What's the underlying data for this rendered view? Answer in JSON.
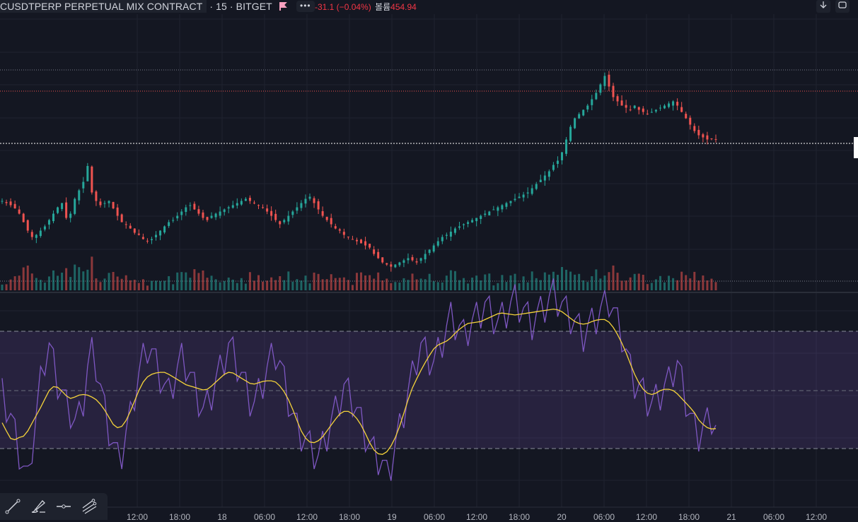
{
  "header": {
    "symbol": "CUSDTPERP PERPETUAL MIX CONTRACT",
    "interval": "15",
    "exchange": "BITGET",
    "change": "-31.1 (−0.04%)",
    "volume_label": "볼륨",
    "volume_value": "454.94",
    "more_label": "•••"
  },
  "toolbar_icons": [
    "trend-line-icon",
    "brush-icon",
    "horizontal-ray-icon",
    "pitchfork-icon"
  ],
  "colors": {
    "background": "#141722",
    "up": "#26a69a",
    "down": "#ef5350",
    "rsi_line": "#7e57c2",
    "rsi_ma": "#f5d33a",
    "rsi_band": "#7e57c2"
  },
  "chart_data": [
    {
      "type": "candlestick",
      "title": "",
      "x_tick_labels": [
        "12:00",
        "18:00",
        "18",
        "06:00",
        "12:00",
        "18:00",
        "19",
        "06:00",
        "12:00",
        "18:00",
        "20",
        "06:00",
        "12:00",
        "18:00",
        "21",
        "06:00",
        "12:00"
      ],
      "candle_count": 168,
      "close_series": [
        0.62,
        0.6,
        0.58,
        0.55,
        0.5,
        0.42,
        0.34,
        0.28,
        0.3,
        0.34,
        0.38,
        0.44,
        0.5,
        0.56,
        0.6,
        0.46,
        0.5,
        0.64,
        0.72,
        0.8,
        0.95,
        0.7,
        0.62,
        0.58,
        0.6,
        0.62,
        0.55,
        0.48,
        0.42,
        0.4,
        0.36,
        0.32,
        0.3,
        0.26,
        0.24,
        0.26,
        0.3,
        0.34,
        0.38,
        0.42,
        0.44,
        0.48,
        0.52,
        0.56,
        0.58,
        0.54,
        0.5,
        0.46,
        0.44,
        0.48,
        0.5,
        0.52,
        0.54,
        0.56,
        0.58,
        0.6,
        0.62,
        0.64,
        0.62,
        0.6,
        0.58,
        0.56,
        0.52,
        0.48,
        0.44,
        0.4,
        0.44,
        0.48,
        0.52,
        0.56,
        0.6,
        0.64,
        0.66,
        0.6,
        0.54,
        0.48,
        0.44,
        0.4,
        0.36,
        0.34,
        0.3,
        0.28,
        0.26,
        0.24,
        0.22,
        0.2,
        0.18,
        0.12,
        0.08,
        0.04,
        0.02,
        0.0,
        0.02,
        0.04,
        0.06,
        0.08,
        0.06,
        0.04,
        0.08,
        0.12,
        0.16,
        0.2,
        0.24,
        0.28,
        0.3,
        0.33,
        0.36,
        0.38,
        0.4,
        0.42,
        0.44,
        0.46,
        0.48,
        0.5,
        0.52,
        0.54,
        0.56,
        0.58,
        0.6,
        0.62,
        0.64,
        0.66,
        0.68,
        0.7,
        0.74,
        0.78,
        0.82,
        0.86,
        0.9,
        0.96,
        1.0,
        1.08,
        1.2,
        1.32,
        1.4,
        1.44,
        1.48,
        1.52,
        1.58,
        1.64,
        1.72,
        1.8,
        1.7,
        1.6,
        1.56,
        1.52,
        1.5,
        1.48,
        1.52,
        1.48,
        1.46,
        1.44,
        1.46,
        1.48,
        1.5,
        1.52,
        1.54,
        1.56,
        1.52,
        1.46,
        1.4,
        1.34,
        1.28,
        1.24,
        1.22,
        1.2,
        1.21,
        1.2
      ],
      "rsi_series": [
        48,
        44,
        40,
        34,
        28,
        22,
        18,
        30,
        40,
        52,
        60,
        64,
        58,
        52,
        48,
        44,
        42,
        38,
        40,
        46,
        56,
        62,
        58,
        50,
        42,
        36,
        30,
        26,
        28,
        34,
        40,
        48,
        54,
        60,
        64,
        62,
        58,
        54,
        50,
        48,
        52,
        56,
        60,
        58,
        54,
        50,
        46,
        42,
        44,
        48,
        52,
        56,
        60,
        64,
        62,
        58,
        54,
        50,
        46,
        44,
        48,
        52,
        56,
        60,
        62,
        58,
        52,
        46,
        40,
        36,
        34,
        32,
        30,
        28,
        26,
        30,
        34,
        38,
        42,
        46,
        50,
        48,
        46,
        42,
        38,
        34,
        30,
        28,
        26,
        24,
        20,
        24,
        30,
        36,
        42,
        48,
        54,
        60,
        64,
        62,
        60,
        58,
        62,
        66,
        70,
        74,
        72,
        70,
        68,
        70,
        72,
        74,
        76,
        78,
        76,
        74,
        72,
        74,
        76,
        78,
        80,
        78,
        76,
        74,
        72,
        74,
        76,
        78,
        80,
        82,
        80,
        78,
        76,
        74,
        72,
        70,
        68,
        70,
        72,
        74,
        76,
        78,
        80,
        76,
        72,
        68,
        62,
        56,
        52,
        50,
        48,
        46,
        44,
        46,
        48,
        50,
        52,
        56,
        58,
        52,
        46,
        40,
        36,
        34,
        36,
        38,
        40,
        36
      ],
      "rsi_bands": [
        30,
        50,
        70
      ]
    }
  ]
}
